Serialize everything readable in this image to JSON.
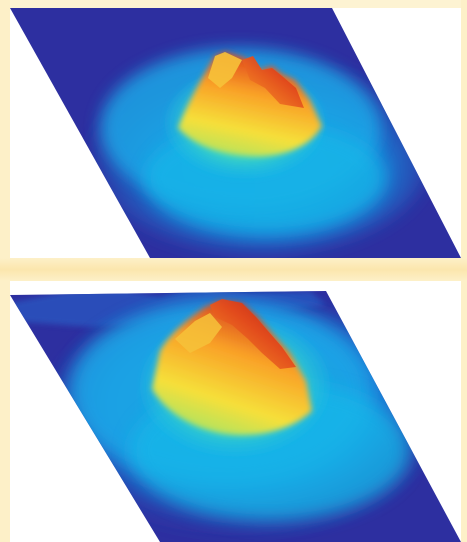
{
  "figure": {
    "panels": [
      {
        "id": "top",
        "description_name": "surface-plot-view-1",
        "colormap": [
          "#2d2fa0",
          "#1a73d9",
          "#18b7e8",
          "#3fd6c0",
          "#9be36b",
          "#f6e03a",
          "#f9a027",
          "#e24a1c",
          "#b81810"
        ]
      },
      {
        "id": "bottom",
        "description_name": "surface-plot-view-2",
        "colormap": [
          "#2d2fa0",
          "#1a73d9",
          "#18b7e8",
          "#3fd6c0",
          "#9be36b",
          "#f6e03a",
          "#f9a027",
          "#e24a1c",
          "#b81810"
        ]
      }
    ]
  }
}
